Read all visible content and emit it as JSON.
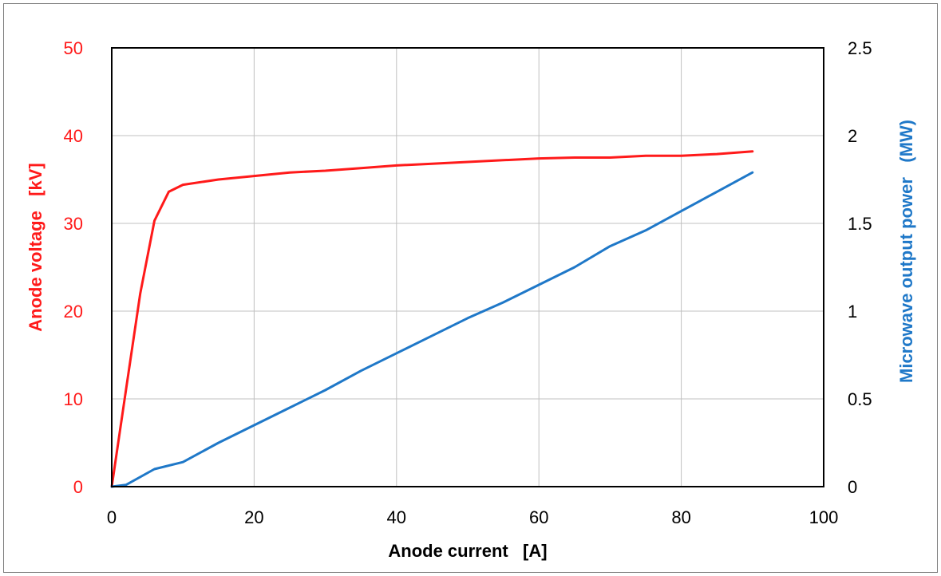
{
  "chart_data": {
    "type": "line",
    "title": "",
    "xlabel": "Anode current   [A]",
    "ylabel_left": "Anode voltage   [kV]",
    "ylabel_right": "Microwave output power   (MW)",
    "xlim": [
      0,
      100
    ],
    "ylim_left": [
      0,
      50
    ],
    "ylim_right": [
      0,
      2.5
    ],
    "x_ticks": [
      "0",
      "20",
      "40",
      "60",
      "80",
      "100"
    ],
    "y_left_ticks": [
      "0",
      "10",
      "20",
      "30",
      "40",
      "50"
    ],
    "y_right_ticks": [
      "0",
      "0.5",
      "1",
      "1.5",
      "2",
      "2.5"
    ],
    "grid": true,
    "legend": "none",
    "colors": {
      "voltage": "#ff1a1a",
      "power": "#1f78c8",
      "grid": "#c0c0c0",
      "axis": "#000000"
    },
    "series": [
      {
        "axis": "left",
        "color": "#ff1a1a",
        "x": [
          0,
          2,
          4,
          6,
          8,
          10,
          15,
          20,
          25,
          30,
          35,
          40,
          45,
          50,
          55,
          60,
          65,
          70,
          75,
          80,
          85,
          90
        ],
        "values": [
          0,
          11,
          22,
          30.3,
          33.6,
          34.4,
          35.0,
          35.4,
          35.8,
          36.0,
          36.3,
          36.6,
          36.8,
          37.0,
          37.2,
          37.4,
          37.5,
          37.5,
          37.7,
          37.7,
          37.9,
          38.2
        ]
      },
      {
        "axis": "right",
        "color": "#1f78c8",
        "x": [
          0,
          2,
          6,
          10,
          15,
          20,
          25,
          30,
          35,
          40,
          45,
          50,
          55,
          60,
          65,
          70,
          75,
          80,
          85,
          90
        ],
        "values": [
          0,
          0.01,
          0.1,
          0.14,
          0.25,
          0.35,
          0.45,
          0.55,
          0.66,
          0.76,
          0.86,
          0.96,
          1.05,
          1.15,
          1.25,
          1.37,
          1.46,
          1.57,
          1.68,
          1.79
        ]
      }
    ]
  }
}
